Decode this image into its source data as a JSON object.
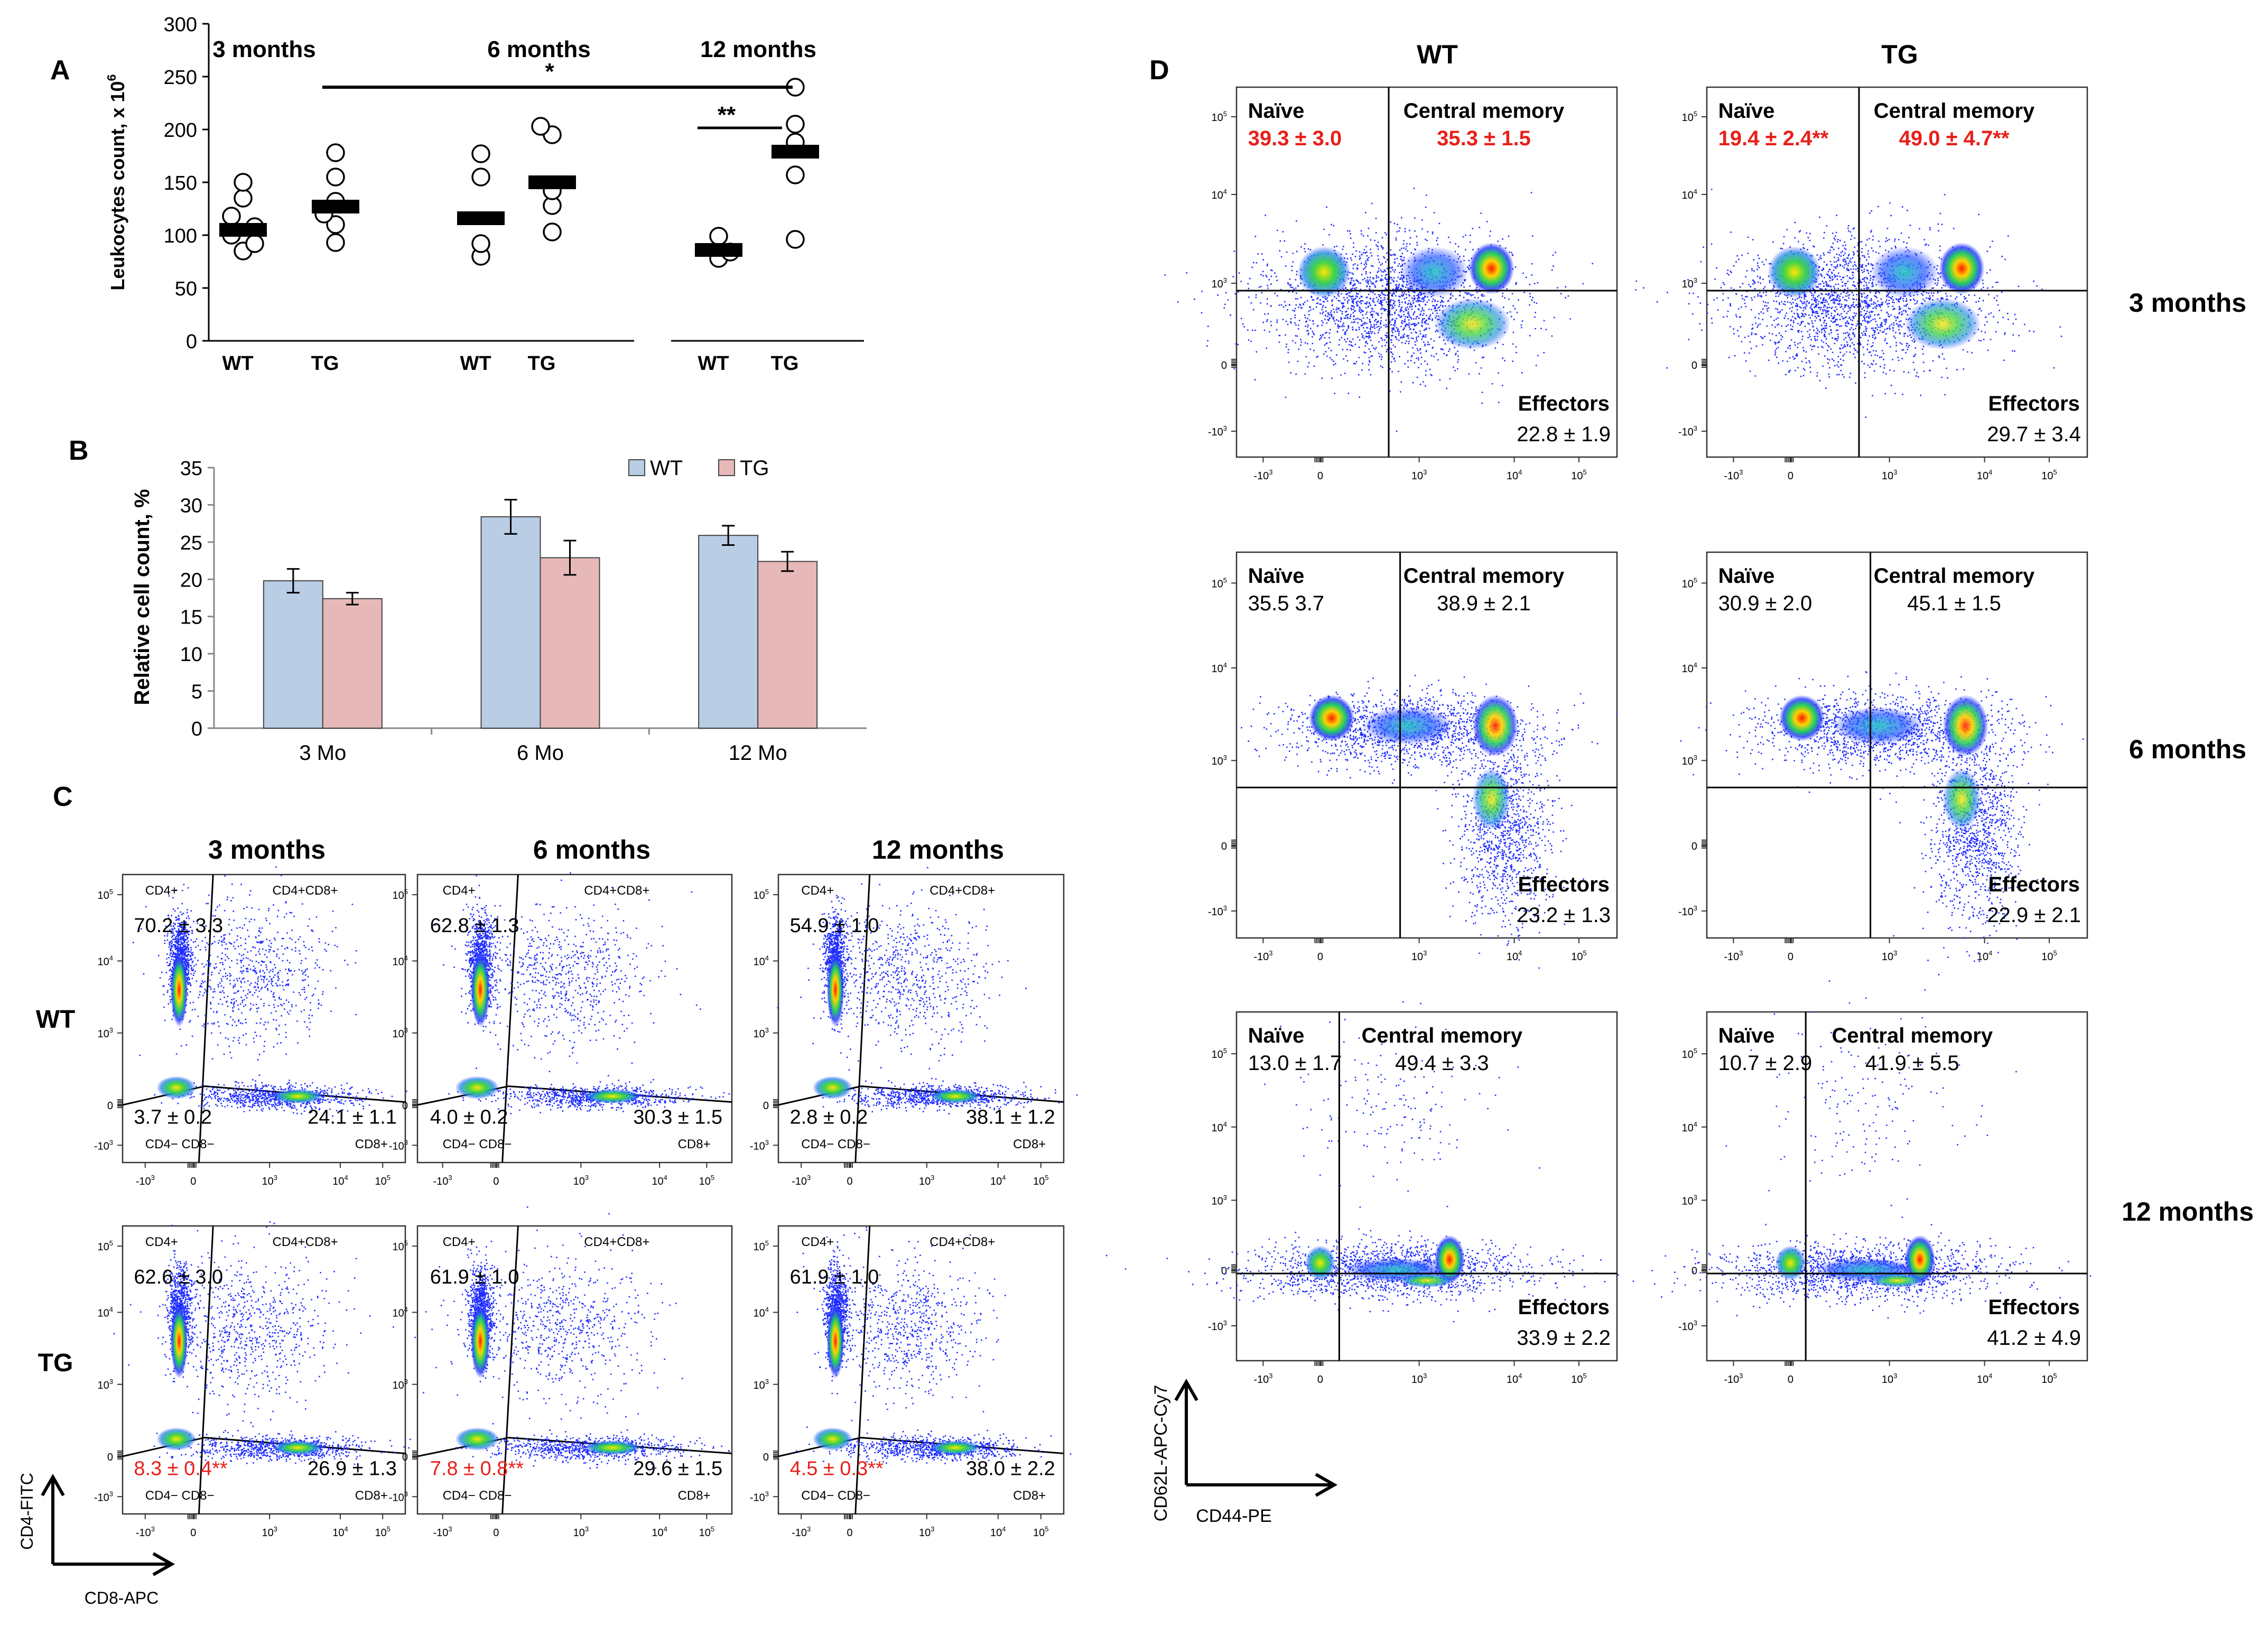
{
  "panels": {
    "A": {
      "letter": "A",
      "chart_data": {
        "type": "scatter",
        "ylabel_main": "Leukocytes count, x 10",
        "ylabel_sup": "6",
        "ylim": [
          0,
          300
        ],
        "yticks": [
          "0",
          "50",
          "100",
          "150",
          "200",
          "250",
          "300"
        ],
        "groups": [
          {
            "label": "3 months",
            "series": [
              {
                "name": "WT",
                "mean": 105,
                "points": [
                  85,
                  92,
                  100,
                  108,
                  118,
                  135,
                  150
                ]
              },
              {
                "name": "TG",
                "mean": 127,
                "points": [
                  93,
                  110,
                  120,
                  132,
                  155,
                  178
                ]
              }
            ]
          },
          {
            "label": "6 months",
            "series": [
              {
                "name": "WT",
                "mean": 116,
                "points": [
                  80,
                  92,
                  155,
                  177
                ]
              },
              {
                "name": "TG",
                "mean": 150,
                "points": [
                  103,
                  128,
                  142,
                  195,
                  203
                ]
              }
            ]
          },
          {
            "label": "12 months",
            "series": [
              {
                "name": "WT",
                "mean": 86,
                "points": [
                  78,
                  84,
                  99
                ]
              },
              {
                "name": "TG",
                "mean": 179,
                "points": [
                  96,
                  157,
                  188,
                  205,
                  240
                ]
              }
            ]
          }
        ],
        "significance": [
          {
            "label": "*",
            "from": "3 months TG",
            "to": "12 months TG"
          },
          {
            "label": "**",
            "from": "12 months WT",
            "to": "12 months TG"
          }
        ]
      }
    },
    "B": {
      "letter": "B",
      "chart_data": {
        "type": "bar",
        "ylabel": "Relative cell count, %",
        "ylim": [
          0,
          35
        ],
        "yticks": [
          "0",
          "5",
          "10",
          "15",
          "20",
          "25",
          "30",
          "35"
        ],
        "categories": [
          "3 Mo",
          "6 Mo",
          "12 Mo"
        ],
        "series": [
          {
            "name": "WT",
            "color": "#b9cde5",
            "values": [
              19.8,
              28.4,
              25.9
            ],
            "errors": [
              1.6,
              2.3,
              1.3
            ]
          },
          {
            "name": "TG",
            "color": "#e6b9b8",
            "values": [
              17.4,
              22.9,
              22.4
            ],
            "errors": [
              0.8,
              2.3,
              1.3
            ]
          }
        ],
        "legend_position": "top-right"
      }
    },
    "C": {
      "letter": "C",
      "column_titles": [
        "3 months",
        "6 months",
        "12 months"
      ],
      "row_titles": [
        "WT",
        "TG"
      ],
      "axis_x": "CD8-APC",
      "axis_y": "CD4-FITC",
      "gate_labels": {
        "tl": "CD4+",
        "tr": "CD4+CD8+",
        "bl": "CD4− CD8−",
        "br": "CD8+"
      },
      "plots": [
        {
          "row": 0,
          "col": 0,
          "cd4": "70.2 ± 3.3",
          "dn": "3.7 ± 0.2",
          "cd8": "24.1 ± 1.1",
          "dn_red": false
        },
        {
          "row": 0,
          "col": 1,
          "cd4": "62.8 ± 1.3",
          "dn": "4.0 ± 0.2",
          "cd8": "30.3 ± 1.5",
          "dn_red": false
        },
        {
          "row": 0,
          "col": 2,
          "cd4": "54.9 ± 1.0",
          "dn": "2.8 ± 0.2",
          "cd8": "38.1 ± 1.2",
          "dn_red": false
        },
        {
          "row": 1,
          "col": 0,
          "cd4": "62.6 ± 3.0",
          "dn": "8.3 ± 0.4**",
          "cd8": "26.9 ± 1.3",
          "dn_red": true
        },
        {
          "row": 1,
          "col": 1,
          "cd4": "61.9 ± 1.0",
          "dn": "7.8 ± 0.8**",
          "cd8": "29.6 ± 1.5",
          "dn_red": true
        },
        {
          "row": 1,
          "col": 2,
          "cd4": "61.9 ± 1.0",
          "dn": "4.5 ± 0.3**",
          "cd8": "38.0 ± 2.2",
          "dn_red": true
        }
      ]
    },
    "D": {
      "letter": "D",
      "column_titles": [
        "WT",
        "TG"
      ],
      "row_titles": [
        "3 months",
        "6 months",
        "12 months"
      ],
      "axis_x": "CD44-PE",
      "axis_y": "CD62L-APC-Cy7",
      "quadrant_labels": {
        "naive": "Naïve",
        "cm": "Central memory",
        "eff": "Effectors"
      },
      "plots": [
        {
          "row": 0,
          "col": 0,
          "naive": "39.3 ± 3.0",
          "cm": "35.3 ± 1.5",
          "eff": "22.8 ± 1.9",
          "red": true
        },
        {
          "row": 0,
          "col": 1,
          "naive": "19.4 ± 2.4**",
          "cm": "49.0 ± 4.7**",
          "eff": "29.7 ± 3.4",
          "red": true
        },
        {
          "row": 1,
          "col": 0,
          "naive": "35.5 3.7",
          "cm": "38.9 ± 2.1",
          "eff": "23.2 ± 1.3",
          "red": false
        },
        {
          "row": 1,
          "col": 1,
          "naive": "30.9 ± 2.0",
          "cm": "45.1 ± 1.5",
          "eff": "22.9 ± 2.1",
          "red": false
        },
        {
          "row": 2,
          "col": 0,
          "naive": "13.0 ± 1.7",
          "cm": "49.4 ± 3.3",
          "eff": "33.9 ± 2.2",
          "red": false
        },
        {
          "row": 2,
          "col": 1,
          "naive": "10.7 ± 2.9",
          "cm": "41.9 ± 5.5",
          "eff": "41.2 ± 4.9",
          "red": false
        }
      ]
    },
    "flow_ticks": {
      "x": [
        "-10",
        "0",
        "10",
        "10",
        "10"
      ],
      "x_exp": [
        "3",
        "",
        "3",
        "4",
        "5"
      ],
      "y": [
        "-10",
        "0",
        "10",
        "10",
        "10"
      ],
      "y_exp": [
        "3",
        "",
        "3",
        "4",
        "5"
      ]
    }
  }
}
